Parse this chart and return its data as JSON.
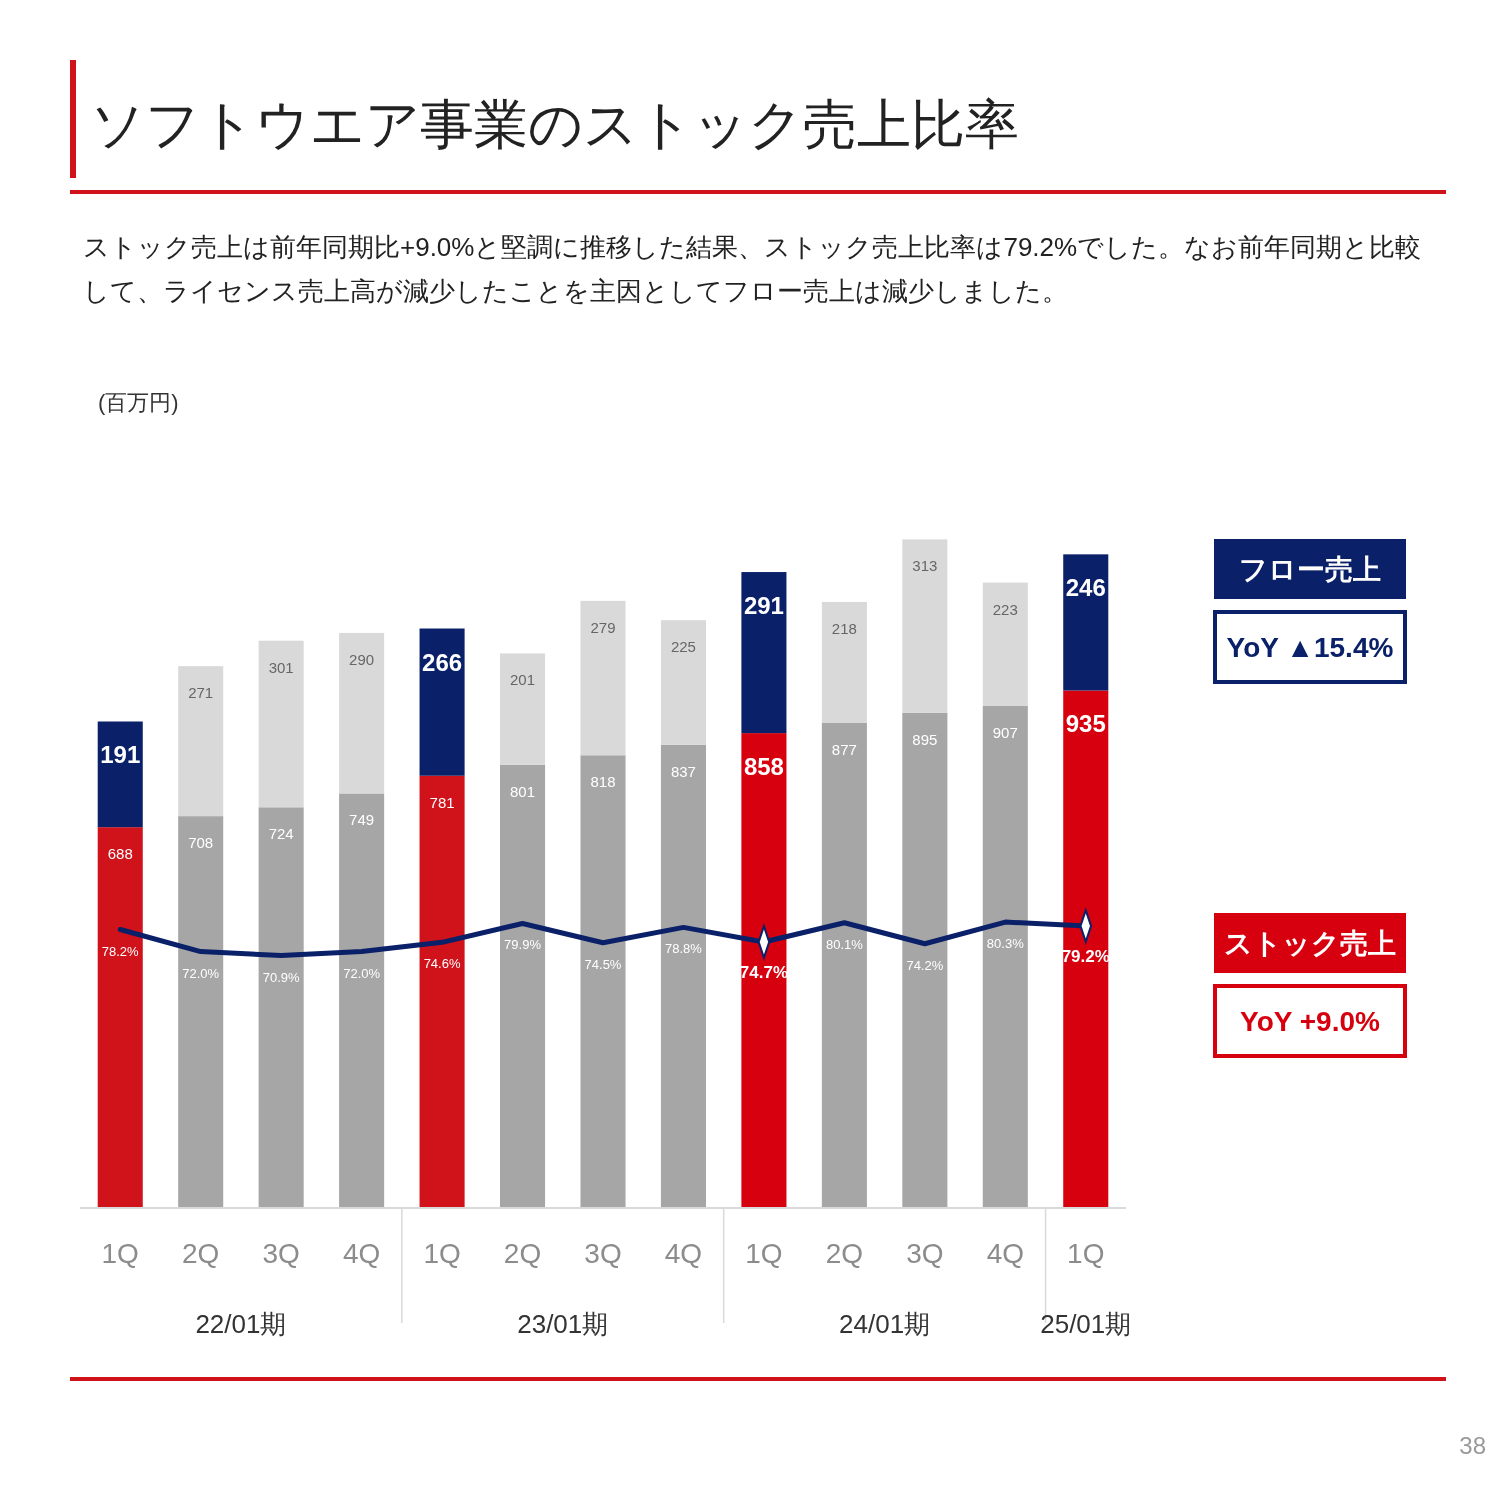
{
  "chart_data": {
    "type": "bar",
    "stacked": true,
    "title": "ソフトウエア事業のストック売上比率",
    "subtitle": "ストック売上は前年同期比+9.0%と堅調に推移した結果、ストック売上比率は79.2%でした。なお前年同期と比較して、ライセンス売上高が減少したことを主因としてフロー売上は減少しました。",
    "categories": [
      "1Q",
      "2Q",
      "3Q",
      "4Q",
      "1Q",
      "2Q",
      "3Q",
      "4Q",
      "1Q",
      "2Q",
      "3Q",
      "4Q",
      "1Q"
    ],
    "tick_labels": "x",
    "legend": "right",
    "data_labels": true,
    "series": [
      {
        "name": "ストック売上",
        "color": "#d7000f",
        "colors": [
          "#d0121b",
          "#a6a6a6",
          "#a6a6a6",
          "#a6a6a6",
          "#d0121b",
          "#a6a6a6",
          "#a6a6a6",
          "#a6a6a6",
          "#d7000f",
          "#a6a6a6",
          "#a6a6a6",
          "#a6a6a6",
          "#d7000f"
        ],
        "values": [
          688,
          708,
          724,
          749,
          781,
          801,
          818,
          837,
          858,
          877,
          895,
          907,
          935
        ]
      },
      {
        "name": "フロー売上",
        "color": "#0a2068",
        "colors": [
          "#0a2068",
          "#d9d9d9",
          "#d9d9d9",
          "#d9d9d9",
          "#0a2068",
          "#d9d9d9",
          "#d9d9d9",
          "#d9d9d9",
          "#0a2068",
          "#d9d9d9",
          "#d9d9d9",
          "#d9d9d9",
          "#0a2068"
        ],
        "values": [
          191,
          271,
          301,
          290,
          266,
          201,
          279,
          225,
          291,
          218,
          313,
          223,
          246
        ]
      },
      {
        "type": "line",
        "axis": "y2",
        "color": "#0a2068",
        "marker": "none",
        "values": [
          78.2,
          72.0,
          70.9,
          72.0,
          74.6,
          79.9,
          74.5,
          78.8,
          74.7,
          80.1,
          74.2,
          80.3,
          79.2
        ],
        "value_labels": [
          "78.2%",
          "72.0%",
          "70.9%",
          "72.0%",
          "74.6%",
          "79.9%",
          "74.5%",
          "78.8%",
          "74.7%",
          "80.1%",
          "74.2%",
          "80.3%",
          "79.2%"
        ]
      },
      {
        "type": "scatter",
        "axis": "y2",
        "color": "#ffffff",
        "marker": "diamond",
        "values": [
          null,
          null,
          null,
          null,
          null,
          null,
          null,
          null,
          74.7,
          null,
          null,
          null,
          79.2
        ],
        "value_labels": [
          null,
          null,
          null,
          null,
          null,
          null,
          null,
          null,
          null,
          null,
          null,
          null,
          null
        ]
      }
    ],
    "annotations": [
      "22/01期",
      "23/01期",
      "24/01期",
      "25/01期",
      "YoY ▲15.4%",
      "YoY +9.0%",
      "(百万円)",
      "38"
    ]
  }
}
